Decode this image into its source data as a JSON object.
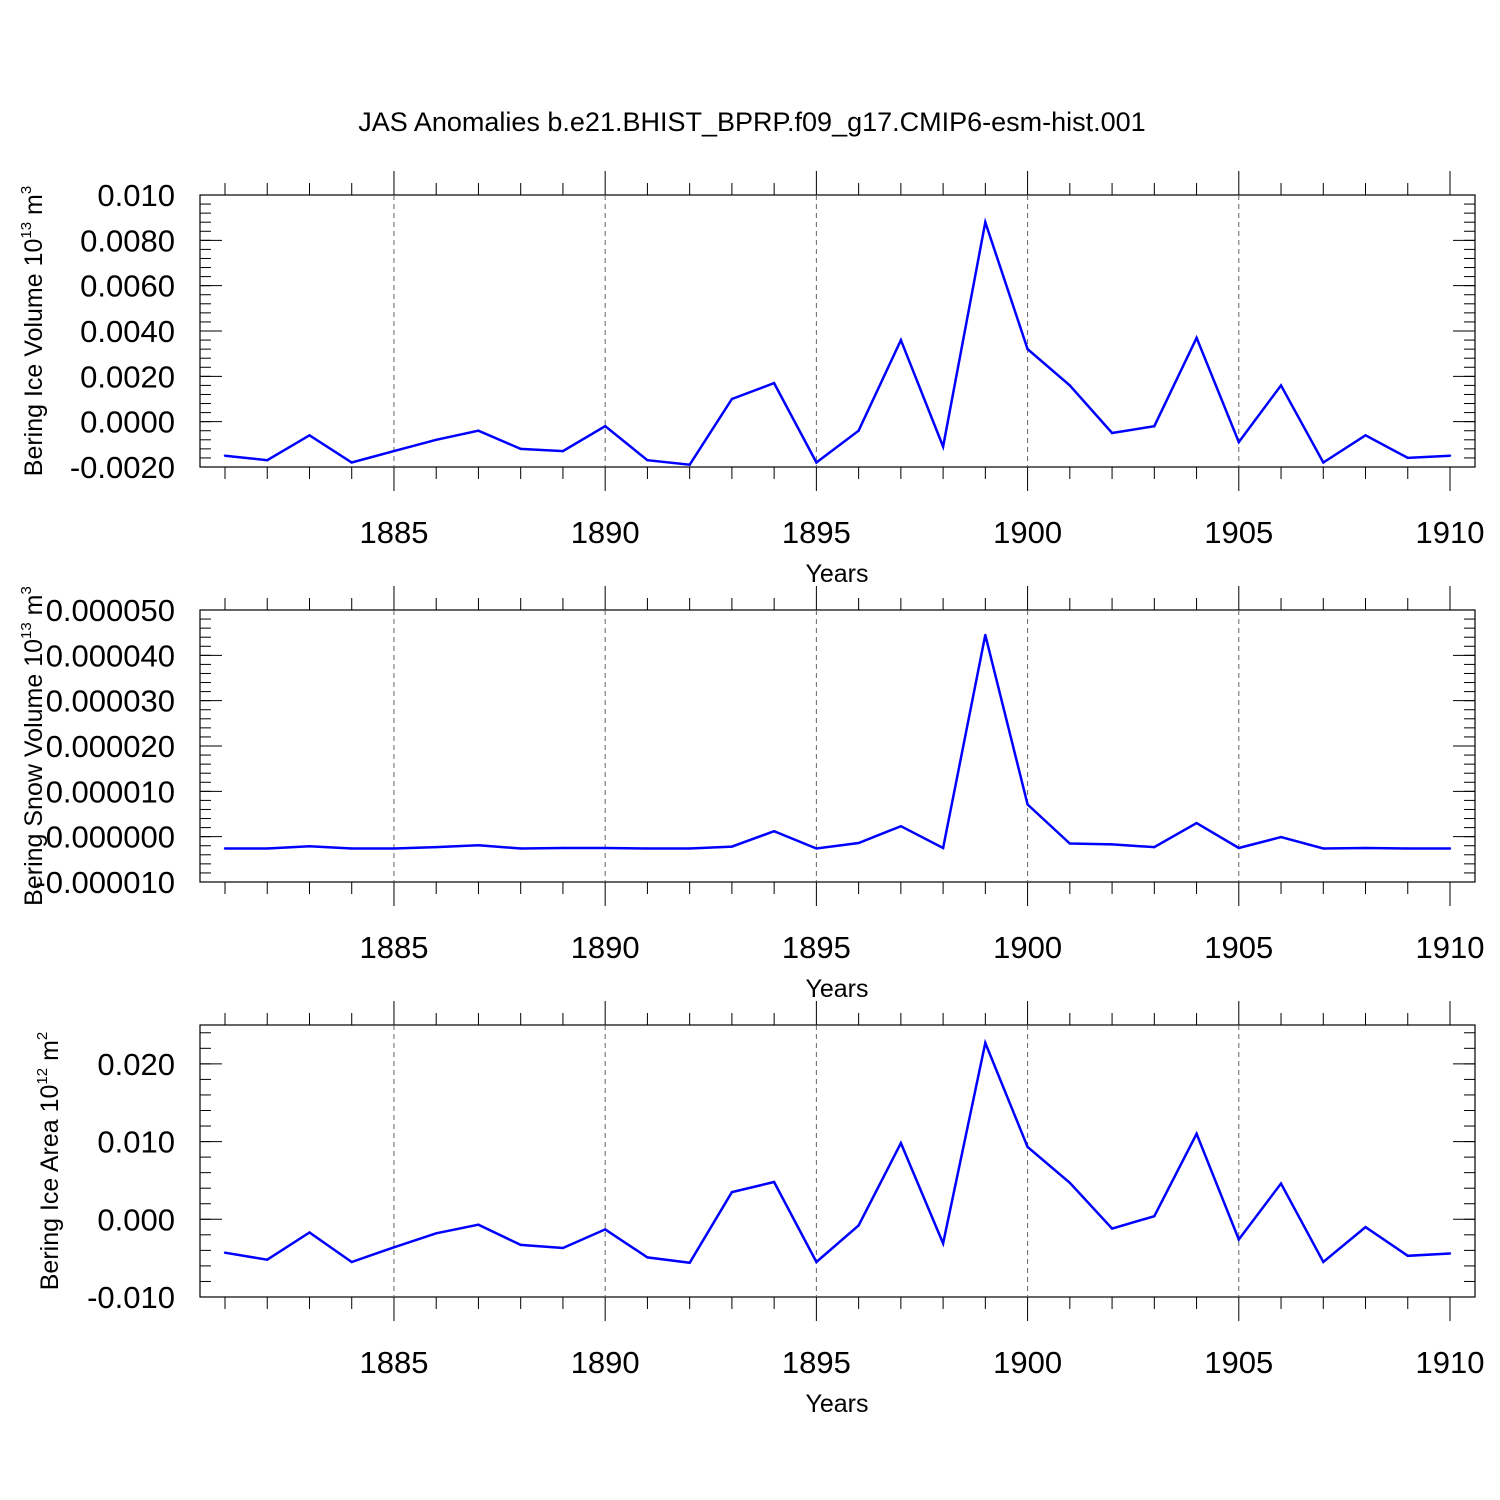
{
  "title": "JAS Anomalies b.e21.BHIST_BPRP.f09_g17.CMIP6-esm-hist.001",
  "colors": {
    "line": "#0000ff",
    "axis": "#000000",
    "grid": "#666666"
  },
  "chart_data": [
    {
      "type": "line",
      "ylabel": "Bering Ice Volume 10",
      "ylabel_exp": "13",
      "ylabel_unit": " m",
      "ylabel_unit_exp": "3",
      "xlabel": "Years",
      "xlim": [
        1881,
        1910
      ],
      "ylim": [
        -0.002,
        0.01
      ],
      "xticks": [
        "1885",
        "1890",
        "1895",
        "1900",
        "1905",
        "1910"
      ],
      "yticks": [
        "-0.0020",
        "0.0000",
        "0.0020",
        "0.0040",
        "0.0060",
        "0.0080",
        "0.010"
      ],
      "grid": "vertical dashed at major x ticks",
      "x": [
        1881,
        1882,
        1883,
        1884,
        1885,
        1886,
        1887,
        1888,
        1889,
        1890,
        1891,
        1892,
        1893,
        1894,
        1895,
        1896,
        1897,
        1898,
        1899,
        1900,
        1901,
        1902,
        1903,
        1904,
        1905,
        1906,
        1907,
        1908,
        1909,
        1910
      ],
      "y": [
        -0.0015,
        -0.0017,
        -0.0006,
        -0.0018,
        -0.0013,
        -0.0008,
        -0.0004,
        -0.0012,
        -0.0013,
        -0.0002,
        -0.0017,
        -0.0019,
        0.001,
        0.0017,
        -0.0018,
        -0.0004,
        0.0036,
        -0.0011,
        0.0088,
        0.0032,
        0.0016,
        -0.0005,
        -0.0002,
        0.0037,
        -0.0009,
        0.0016,
        -0.0018,
        -0.0006,
        -0.0016,
        -0.0015
      ]
    },
    {
      "type": "line",
      "ylabel": "Bering Snow Volume 10",
      "ylabel_exp": "13",
      "ylabel_unit": " m",
      "ylabel_unit_exp": "3",
      "xlabel": "Years",
      "xlim": [
        1881,
        1910
      ],
      "ylim": [
        -1e-05,
        5e-05
      ],
      "xticks": [
        "1885",
        "1890",
        "1895",
        "1900",
        "1905",
        "1910"
      ],
      "yticks": [
        "-0.000010",
        "0.000000",
        "0.000010",
        "0.000020",
        "0.000030",
        "0.000040",
        "0.000050"
      ],
      "grid": "vertical dashed at major x ticks",
      "x": [
        1881,
        1882,
        1883,
        1884,
        1885,
        1886,
        1887,
        1888,
        1889,
        1890,
        1891,
        1892,
        1893,
        1894,
        1895,
        1896,
        1897,
        1898,
        1899,
        1900,
        1901,
        1902,
        1903,
        1904,
        1905,
        1906,
        1907,
        1908,
        1909,
        1910
      ],
      "y": [
        -2.6e-06,
        -2.6e-06,
        -2.1e-06,
        -2.6e-06,
        -2.6e-06,
        -2.3e-06,
        -1.9e-06,
        -2.6e-06,
        -2.5e-06,
        -2.5e-06,
        -2.6e-06,
        -2.6e-06,
        -2.2e-06,
        1.2e-06,
        -2.6e-06,
        -1.4e-06,
        2.3e-06,
        -2.5e-06,
        4.45e-05,
        7.1e-06,
        -1.5e-06,
        -1.7e-06,
        -2.3e-06,
        3e-06,
        -2.5e-06,
        -1e-07,
        -2.6e-06,
        -2.5e-06,
        -2.6e-06,
        -2.6e-06
      ]
    },
    {
      "type": "line",
      "ylabel": "Bering Ice Area 10",
      "ylabel_exp": "12",
      "ylabel_unit": " m",
      "ylabel_unit_exp": "2",
      "xlabel": "Years",
      "xlim": [
        1881,
        1910
      ],
      "ylim": [
        -0.01,
        0.025
      ],
      "xticks": [
        "1885",
        "1890",
        "1895",
        "1900",
        "1905",
        "1910"
      ],
      "yticks": [
        "-0.010",
        "0.000",
        "0.010",
        "0.020"
      ],
      "grid": "vertical dashed at major x ticks",
      "x": [
        1881,
        1882,
        1883,
        1884,
        1885,
        1886,
        1887,
        1888,
        1889,
        1890,
        1891,
        1892,
        1893,
        1894,
        1895,
        1896,
        1897,
        1898,
        1899,
        1900,
        1901,
        1902,
        1903,
        1904,
        1905,
        1906,
        1907,
        1908,
        1909,
        1910
      ],
      "y": [
        -0.0043,
        -0.0052,
        -0.0017,
        -0.0055,
        -0.0036,
        -0.0018,
        -0.0007,
        -0.0033,
        -0.0037,
        -0.0013,
        -0.0049,
        -0.0056,
        0.0035,
        0.0048,
        -0.0055,
        -0.0008,
        0.0098,
        -0.0031,
        0.0227,
        0.0093,
        0.0047,
        -0.0012,
        0.0004,
        0.011,
        -0.0026,
        0.0046,
        -0.0055,
        -0.001,
        -0.0047,
        -0.0044
      ]
    }
  ]
}
